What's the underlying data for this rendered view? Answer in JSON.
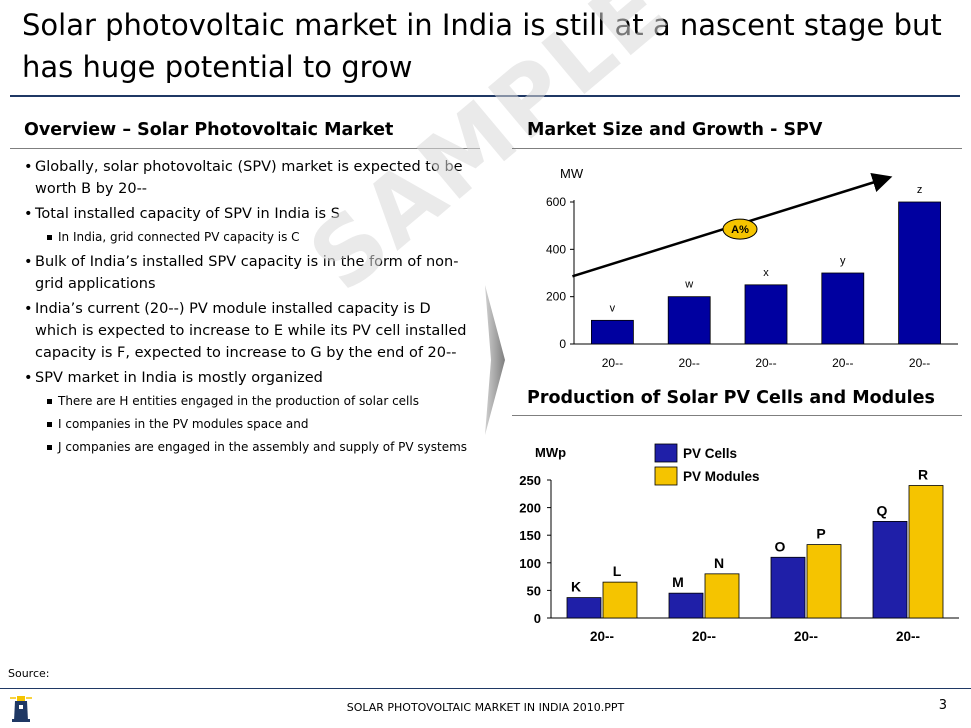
{
  "title": "Solar photovoltaic market in India is still at a nascent stage but has huge potential to grow",
  "overview": {
    "heading": "Overview – Solar Photovoltaic Market",
    "bullets": [
      {
        "level": 1,
        "text": "Globally, solar photovoltaic (SPV) market is expected to be worth B by 20--"
      },
      {
        "level": 1,
        "text": "Total installed capacity of SPV in India is S"
      },
      {
        "level": 2,
        "text": "In India, grid connected PV capacity is C"
      },
      {
        "level": 1,
        "text": "Bulk of India’s installed SPV capacity is in the form of non-grid applications"
      },
      {
        "level": 1,
        "text": "India’s current (20--) PV module installed capacity is D which is expected to increase to E while its PV cell installed capacity is F, expected to increase to G by the end of 20--"
      },
      {
        "level": 1,
        "text": "SPV market in India is mostly organized"
      },
      {
        "level": 2,
        "text": "There are H  entities engaged in the production of solar cells"
      },
      {
        "level": 2,
        "text": "I companies in the PV modules space and"
      },
      {
        "level": 2,
        "text": "J companies are engaged in the assembly and supply of PV systems"
      }
    ]
  },
  "watermark": "SAMPLE",
  "market_heading": "Market Size and Growth  - SPV",
  "production_heading": "Production of Solar PV Cells and Modules",
  "chart_data": [
    {
      "type": "bar",
      "title": "Market Size and Growth  - SPV",
      "ylabel": "MW",
      "ylim": [
        0,
        600
      ],
      "yticks": [
        0,
        200,
        400,
        600
      ],
      "categories": [
        "20--",
        "20--",
        "20--",
        "20--",
        "20--"
      ],
      "values": [
        100,
        200,
        250,
        300,
        600
      ],
      "data_labels": [
        "v",
        "w",
        "x",
        "y",
        "z"
      ],
      "growth_label": "A%",
      "colors": {
        "bar": "#0000a0",
        "badge": "#f5c400"
      }
    },
    {
      "type": "bar",
      "title": "Production of Solar PV Cells and Modules",
      "ylabel": "MWp",
      "ylim": [
        0,
        250
      ],
      "yticks": [
        0,
        50,
        100,
        150,
        200,
        250
      ],
      "categories": [
        "20--",
        "20--",
        "20--",
        "20--"
      ],
      "series": [
        {
          "name": "PV Cells",
          "values": [
            37,
            45,
            110,
            175
          ],
          "labels": [
            "K",
            "M",
            "O",
            "Q"
          ],
          "color": "#1f1fa8"
        },
        {
          "name": "PV Modules",
          "values": [
            65,
            80,
            133,
            240
          ],
          "labels": [
            "L",
            "N",
            "P",
            "R"
          ],
          "color": "#f5c400"
        }
      ]
    }
  ],
  "source_label": "Source:",
  "footer_text": "SOLAR PHOTOVOLTAIC MARKET IN INDIA 2010.PPT",
  "page_number": "3"
}
